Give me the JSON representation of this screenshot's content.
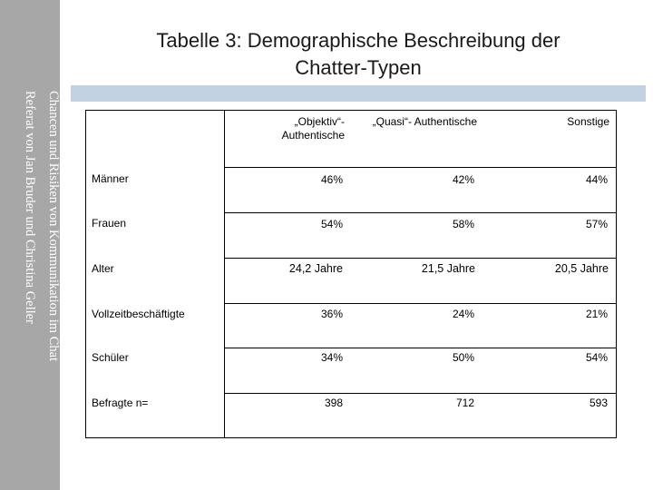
{
  "sidebar": {
    "line1": "Chancen und Risiken von Kommunikation im Chat",
    "line2": "Referat von Jan Bruder und Christina Geller"
  },
  "title": {
    "line1": "Tabelle 3: Demographische Beschreibung der",
    "line2": "Chatter-Typen"
  },
  "table": {
    "headers": {
      "col1": "„Objektiv“-\nAuthentische",
      "col2": "„Quasi“- Authentische",
      "col3": "Sonstige"
    },
    "rows": [
      {
        "label": "Männer",
        "values": [
          "46%",
          "42%",
          "44%"
        ]
      },
      {
        "label": "Frauen",
        "values": [
          "54%",
          "58%",
          "57%"
        ]
      },
      {
        "label": "Alter",
        "values": [
          "24,2 Jahre",
          "21,5 Jahre",
          "20,5 Jahre"
        ]
      },
      {
        "label": "Vollzeitbeschäftigte",
        "values": [
          "36%",
          "24%",
          "21%"
        ]
      },
      {
        "label": "Schüler",
        "values": [
          "34%",
          "50%",
          "54%"
        ]
      },
      {
        "label": "Befragte n=",
        "values": [
          "398",
          "712",
          "593"
        ]
      }
    ]
  }
}
